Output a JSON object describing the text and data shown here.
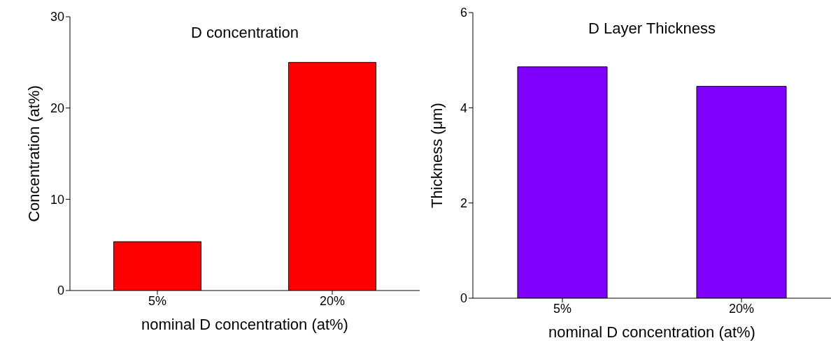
{
  "chart_data": [
    {
      "type": "bar",
      "title": "D concentration",
      "xlabel": "nominal D concentration (at%)",
      "ylabel": "Concentration (at%)",
      "categories": [
        "5%",
        "20%"
      ],
      "values": [
        5.35,
        25.0
      ],
      "color": "#ff0000",
      "ylim": [
        0,
        30
      ],
      "yticks": [
        0,
        10,
        20,
        30
      ],
      "grid": false
    },
    {
      "type": "bar",
      "title": "D Layer Thickness",
      "xlabel": "nominal D concentration (at%)",
      "ylabel": "Thickness (μm)",
      "categories": [
        "5%",
        "20%"
      ],
      "values": [
        4.86,
        4.45
      ],
      "color": "#7f00ff",
      "ylim": [
        0,
        6
      ],
      "yticks": [
        0,
        2,
        4,
        6
      ],
      "grid": false
    }
  ]
}
